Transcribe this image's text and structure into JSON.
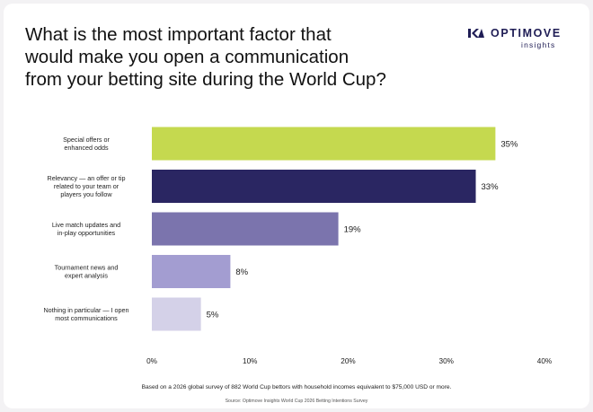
{
  "title_lines": [
    "What is the most important factor that",
    "would make you open a communication",
    "from your betting site during the World Cup?"
  ],
  "brand": {
    "name": "OPTIMOVE",
    "sub": "insights",
    "logo_icon": "optimove-logo-icon",
    "color": "#1f1d55"
  },
  "chart_data": {
    "type": "bar",
    "orientation": "horizontal",
    "categories": [
      [
        "Special offers or",
        "enhanced odds"
      ],
      [
        "Relevancy — an offer or tip",
        "related to your team or",
        "players you follow"
      ],
      [
        "Live match updates and",
        "in-play opportunities"
      ],
      [
        "Tournament news and",
        "expert analysis"
      ],
      [
        "Nothing in particular — I open",
        "most communications"
      ]
    ],
    "values": [
      35,
      33,
      19,
      8,
      5
    ],
    "value_labels": [
      "35%",
      "33%",
      "19%",
      "8%",
      "5%"
    ],
    "colors": [
      "#c5d94f",
      "#2a2662",
      "#7b74ad",
      "#a39dd1",
      "#d4d1e8"
    ],
    "xlim": [
      0,
      40
    ],
    "xticks": [
      0,
      10,
      20,
      30,
      40
    ],
    "xtick_labels": [
      "0%",
      "10%",
      "20%",
      "30%",
      "40%"
    ],
    "grid": false,
    "legend": "none"
  },
  "footnotes": {
    "survey": "Based on a 2026 global survey of 882 World Cup bettors with household incomes equivalent to $75,000 USD or more.",
    "source": "Source: Optimove Insights World Cup 2026 Betting Intentions Survey"
  }
}
